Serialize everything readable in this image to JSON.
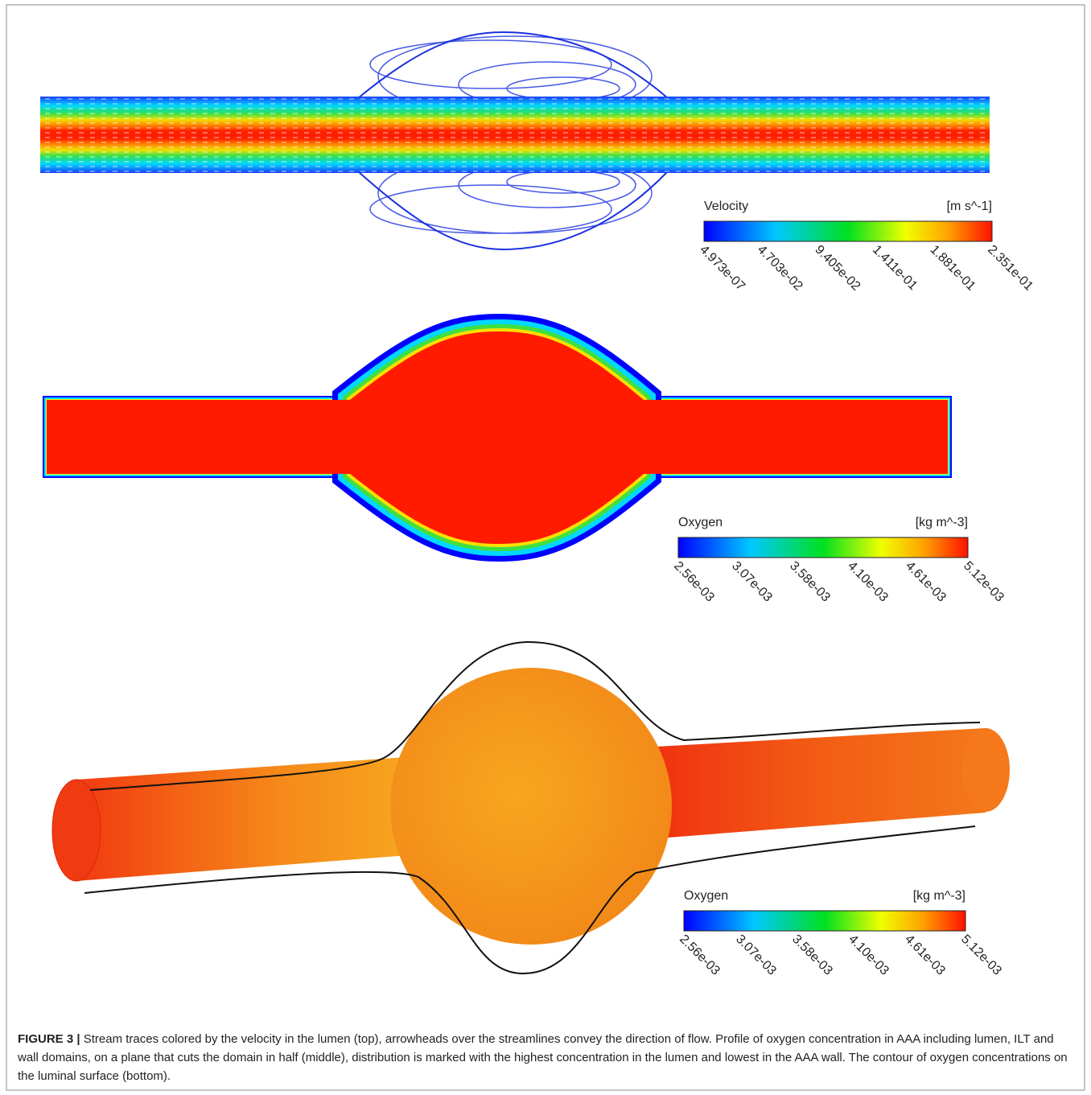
{
  "colorbars": [
    {
      "label": "Velocity",
      "unit": "[m s^-1]",
      "ticks": [
        "4.973e-07",
        "4.703e-02",
        "9.405e-02",
        "1.411e-01",
        "1.881e-01",
        "2.351e-01"
      ]
    },
    {
      "label": "Oxygen",
      "unit": "[kg m^-3]",
      "ticks": [
        "2.56e-03",
        "3.07e-03",
        "3.58e-03",
        "4.10e-03",
        "4.61e-03",
        "5.12e-03"
      ]
    },
    {
      "label": "Oxygen",
      "unit": "[kg m^-3]",
      "ticks": [
        "2.56e-03",
        "3.07e-03",
        "3.58e-03",
        "4.10e-03",
        "4.61e-03",
        "5.12e-03"
      ]
    }
  ],
  "caption": {
    "figure_label": "FIGURE 3 |",
    "text": "Stream traces colored by the velocity in the lumen (top), arrowheads over the streamlines convey the direction of flow. Profile of oxygen concentration in AAA including lumen, ILT and wall domains, on a plane that cuts the domain in half (middle), distribution is marked with the highest concentration in the lumen and lowest in the AAA wall. The contour of oxygen concentrations on the luminal surface (bottom)."
  }
}
